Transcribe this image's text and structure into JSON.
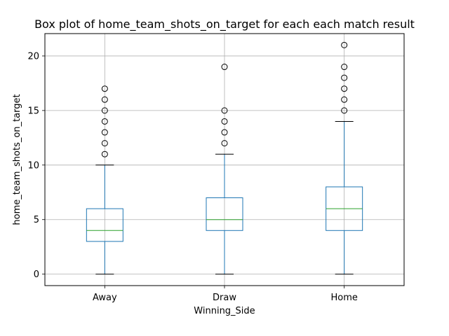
{
  "chart_data": {
    "type": "box",
    "title": "Box plot of home_team_shots_on_target for each each match result",
    "xlabel": "Winning_Side",
    "ylabel": "home_team_shots_on_target",
    "ylim": [
      -1.05,
      22.05
    ],
    "yticks": [
      0,
      5,
      10,
      15,
      20
    ],
    "grid": true,
    "colors": {
      "box": "#1f77b4",
      "median": "#2ca02c",
      "whisker": "#1f77b4",
      "cap": "#000000",
      "flier": "#000000",
      "grid": "#b0b0b0"
    },
    "categories": [
      "Away",
      "Draw",
      "Home"
    ],
    "boxes": [
      {
        "category": "Away",
        "whislo": 0,
        "q1": 3,
        "median": 4,
        "q3": 6,
        "whishi": 10,
        "fliers": [
          11,
          12,
          13,
          14,
          15,
          16,
          17
        ]
      },
      {
        "category": "Draw",
        "whislo": 0,
        "q1": 4,
        "median": 5,
        "q3": 7,
        "whishi": 11,
        "fliers": [
          12,
          13,
          14,
          15,
          19
        ]
      },
      {
        "category": "Home",
        "whislo": 0,
        "q1": 4,
        "median": 6,
        "q3": 8,
        "whishi": 14,
        "fliers": [
          15,
          16,
          17,
          18,
          19,
          21
        ]
      }
    ]
  }
}
